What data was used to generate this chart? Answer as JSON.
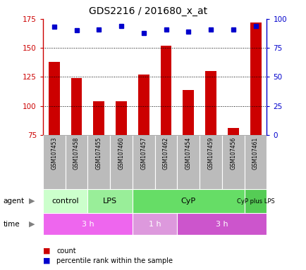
{
  "title": "GDS2216 / 201680_x_at",
  "samples": [
    "GSM107453",
    "GSM107458",
    "GSM107455",
    "GSM107460",
    "GSM107457",
    "GSM107462",
    "GSM107454",
    "GSM107459",
    "GSM107456",
    "GSM107461"
  ],
  "counts": [
    138,
    124,
    104,
    104,
    127,
    152,
    114,
    130,
    81,
    172
  ],
  "percentile_ranks": [
    93,
    90,
    91,
    94,
    88,
    91,
    89,
    91,
    91,
    94
  ],
  "ylim_left": [
    75,
    175
  ],
  "ylim_right": [
    0,
    100
  ],
  "yticks_left": [
    75,
    100,
    125,
    150,
    175
  ],
  "yticks_right": [
    0,
    25,
    50,
    75,
    100
  ],
  "bar_color": "#cc0000",
  "dot_color": "#0000cc",
  "agent_groups": [
    {
      "label": "control",
      "start": 0,
      "end": 2
    },
    {
      "label": "LPS",
      "start": 2,
      "end": 4
    },
    {
      "label": "CyP",
      "start": 4,
      "end": 9
    },
    {
      "label": "CyP plus LPS",
      "start": 9,
      "end": 10
    }
  ],
  "agent_colors": [
    "#ccffcc",
    "#99ee99",
    "#66dd66",
    "#55cc55"
  ],
  "time_groups": [
    {
      "label": "3 h",
      "start": 0,
      "end": 4
    },
    {
      "label": "1 h",
      "start": 4,
      "end": 6
    },
    {
      "label": "3 h",
      "start": 6,
      "end": 10
    }
  ],
  "time_colors": [
    "#ee66ee",
    "#dd99dd",
    "#cc55cc"
  ],
  "grid_color": "#000000",
  "sample_bg_color": "#bbbbbb",
  "left_tick_color": "#cc0000",
  "right_tick_color": "#0000cc",
  "bar_width": 0.5,
  "legend_count_color": "#cc0000",
  "legend_dot_color": "#0000cc"
}
